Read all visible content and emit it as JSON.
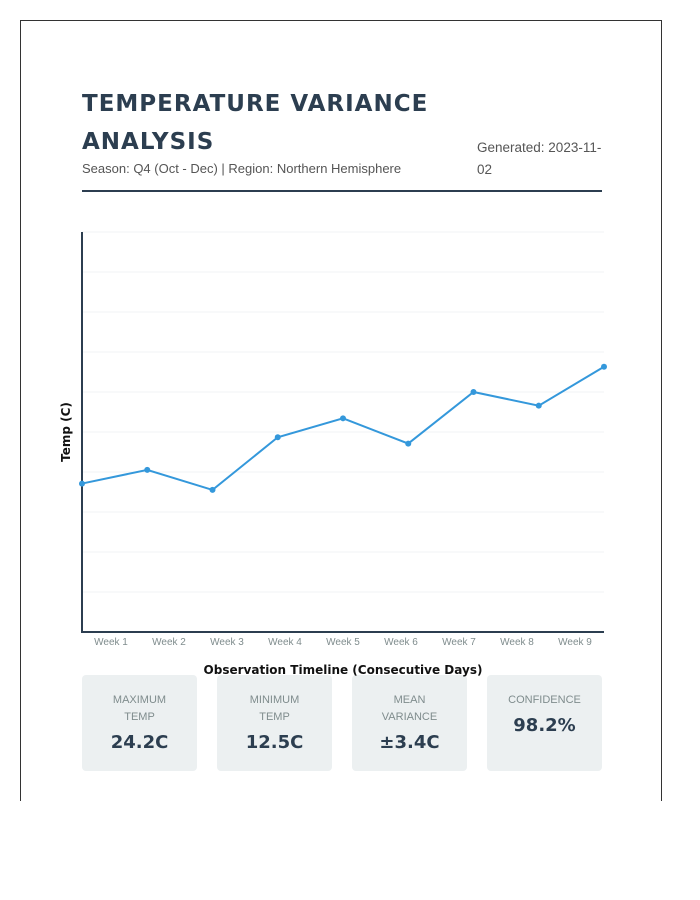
{
  "header": {
    "title": "TEMPERATURE VARIANCE ANALYSIS",
    "subtitle": "Season: Q4 (Oct - Dec) | Region: Northern Hemisphere",
    "generated": "Generated: 2023-11-02"
  },
  "chart_data": {
    "type": "line",
    "title": "",
    "xlabel": "Observation Timeline (Consecutive Days)",
    "ylabel": "Temp (C)",
    "categories": [
      "Week 1",
      "Week 2",
      "Week 3",
      "Week 4",
      "Week 5",
      "Week 6",
      "Week 7",
      "Week 8",
      "Week 9"
    ],
    "values": [
      13.1,
      14.4,
      12.5,
      17.5,
      19.3,
      16.9,
      21.8,
      20.5,
      24.2
    ],
    "ylim": [
      -1,
      37
    ],
    "y_tick_labels_shown": false,
    "grid": true,
    "line_color": "#3498db",
    "axis_color": "#2c3e50"
  },
  "stats": [
    {
      "label": "MAXIMUM TEMP",
      "value": "24.2C"
    },
    {
      "label": "MINIMUM TEMP",
      "value": "12.5C"
    },
    {
      "label": "MEAN VARIANCE",
      "value": "±3.4C"
    },
    {
      "label": "CONFIDENCE",
      "value": "98.2%"
    }
  ]
}
